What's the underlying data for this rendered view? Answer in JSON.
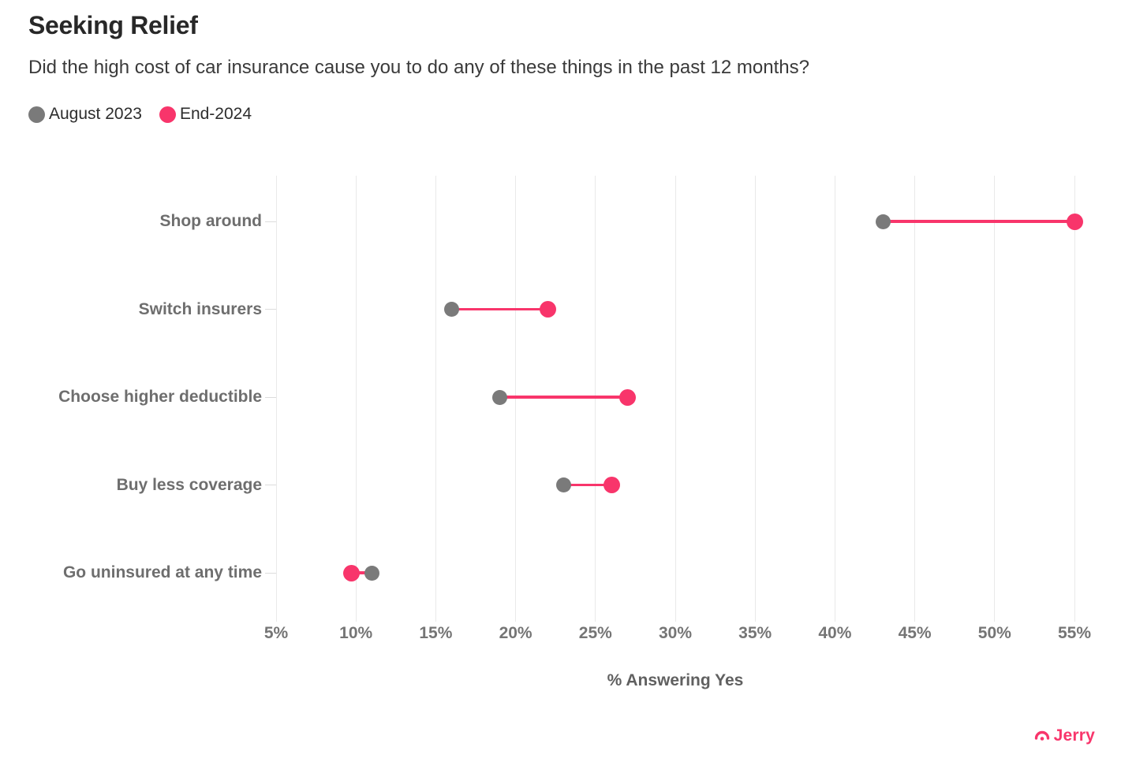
{
  "header": {
    "title": "Seeking Relief",
    "subtitle": "Did the high cost of car insurance cause you to do any of these things in the past 12 months?"
  },
  "legend": [
    {
      "label": "August 2023",
      "color": "#7a7a7a"
    },
    {
      "label": "End-2024",
      "color": "#f8356b"
    }
  ],
  "chart_data": {
    "type": "dumbbell",
    "title": "Seeking Relief",
    "subtitle": "Did the high cost of car insurance cause you to do any of these things in the past 12 months?",
    "categories": [
      "Shop around",
      "Switch insurers",
      "Choose higher deductible",
      "Buy less coverage",
      "Go uninsured at any time"
    ],
    "series": [
      {
        "name": "August 2023",
        "color": "#7a7a7a",
        "dot_size": 19,
        "values": [
          43,
          16,
          19,
          23,
          11
        ]
      },
      {
        "name": "End-2024",
        "color": "#f8356b",
        "dot_size": 21,
        "values": [
          55,
          22,
          27,
          26,
          9.7
        ]
      }
    ],
    "xlabel": "% Answering Yes",
    "xlim": [
      5,
      55
    ],
    "x_tick_labels": [
      "5%",
      "10%",
      "15%",
      "20%",
      "25%",
      "30%",
      "35%",
      "40%",
      "45%",
      "50%",
      "55%"
    ],
    "x_tick_values": [
      5,
      10,
      15,
      20,
      25,
      30,
      35,
      40,
      45,
      50,
      55
    ],
    "grid": "vertical-only",
    "legend_position": "top-left",
    "connector_color": "#f8356b",
    "gridline_color": "#e9e9e9"
  },
  "footer": {
    "brand": "Jerry",
    "brand_color": "#f8356b"
  }
}
